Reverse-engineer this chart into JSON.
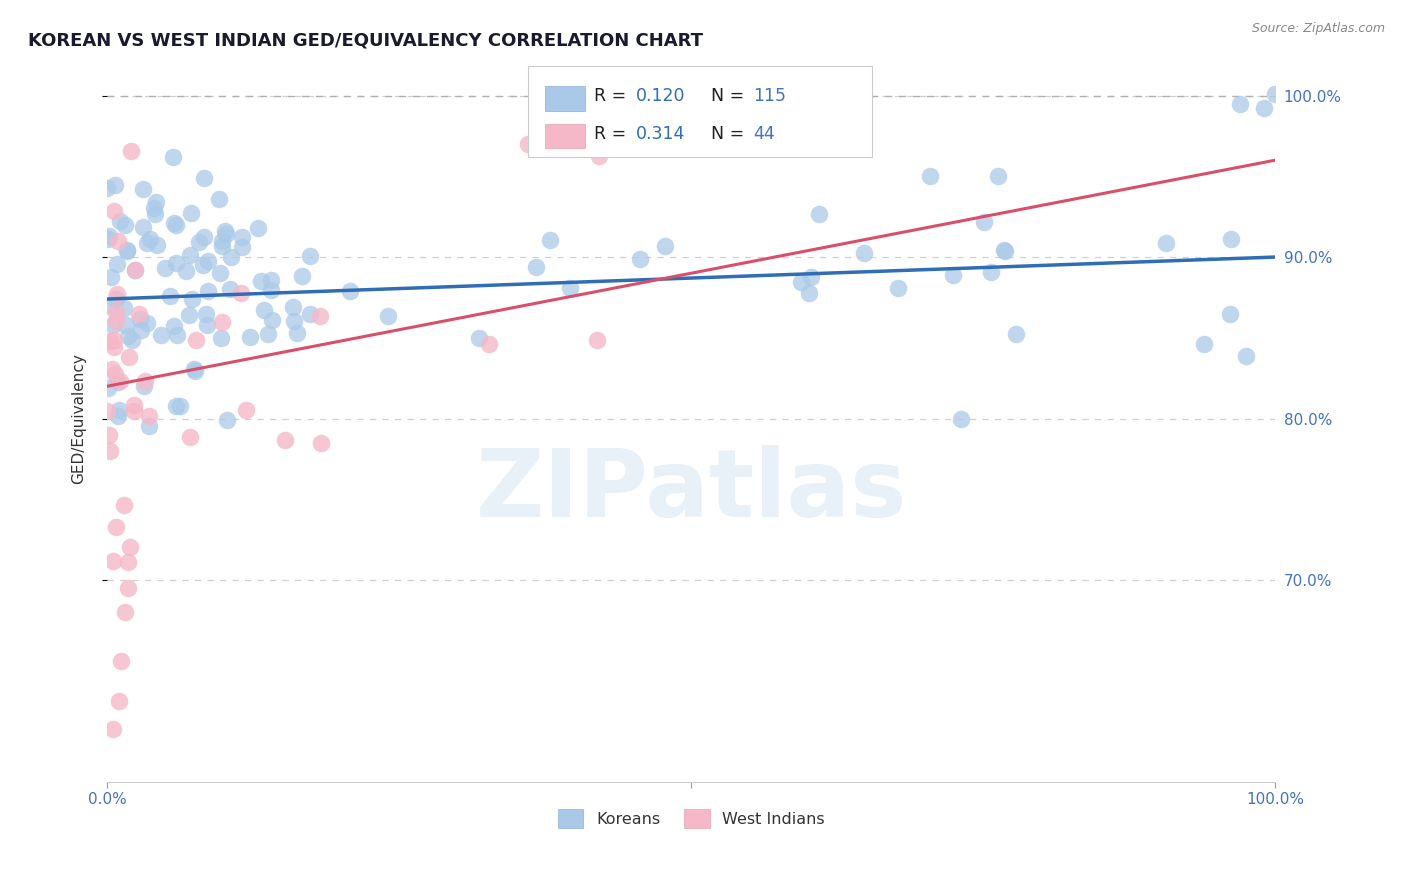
{
  "title": "KOREAN VS WEST INDIAN GED/EQUIVALENCY CORRELATION CHART",
  "source": "Source: ZipAtlas.com",
  "ylabel": "GED/Equivalency",
  "ytick_labels": [
    "70.0%",
    "80.0%",
    "90.0%",
    "100.0%"
  ],
  "ytick_values": [
    0.7,
    0.8,
    0.9,
    1.0
  ],
  "xrange": [
    0.0,
    1.0
  ],
  "yrange": [
    0.575,
    1.025
  ],
  "legend_r1": "0.120",
  "legend_n1": "115",
  "legend_r2": "0.314",
  "legend_n2": "44",
  "watermark": "ZIPatlas",
  "blue_color": "#aac9e8",
  "pink_color": "#f5b8c8",
  "blue_line_color": "#2f6db5",
  "pink_line_color": "#d94f6a",
  "title_color": "#1a1a2e",
  "axis_label_color": "#4472c4",
  "legend_r_color": "#2f6eb5",
  "legend_n_color": "#4472c4",
  "blue_trend_x": [
    0.0,
    1.0
  ],
  "blue_trend_y": [
    0.874,
    0.9
  ],
  "pink_trend_x": [
    0.0,
    1.0
  ],
  "pink_trend_y": [
    0.82,
    0.96
  ],
  "dashed_line_y": 1.0,
  "random_seed": 77,
  "korean_seed": 42,
  "westindian_seed": 123
}
